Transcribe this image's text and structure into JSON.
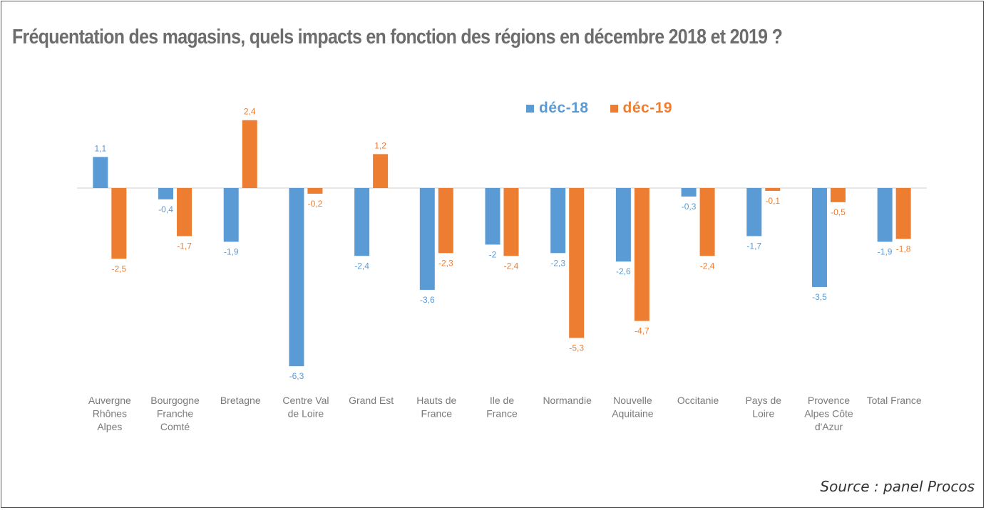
{
  "title": "Fréquentation des magasins, quels impacts en fonction des régions en décembre 2018 et 2019 ?",
  "source": "Source : panel Procos",
  "colors": {
    "dec18": "#5b9bd5",
    "dec19": "#ed7d31",
    "axis": "#d9d9d9",
    "text": "#6d6d6d"
  },
  "legend": [
    {
      "name": "déc-18",
      "color": "#5b9bd5"
    },
    {
      "name": "déc-19",
      "color": "#ed7d31"
    }
  ],
  "chart_data": {
    "type": "bar",
    "title": "",
    "xlabel": "",
    "ylabel": "",
    "ylim": [
      -6.3,
      2.4
    ],
    "grid": false,
    "legend_position": "top-right",
    "categories": [
      [
        "Auvergne",
        "Rhônes",
        "Alpes"
      ],
      [
        "Bourgogne",
        "Franche",
        "Comté"
      ],
      [
        "Bretagne"
      ],
      [
        "Centre Val",
        "de Loire"
      ],
      [
        "Grand Est"
      ],
      [
        "Hauts de",
        "France"
      ],
      [
        "Ile de",
        "France"
      ],
      [
        "Normandie"
      ],
      [
        "Nouvelle",
        "Aquitaine"
      ],
      [
        "Occitanie"
      ],
      [
        "Pays de",
        "Loire"
      ],
      [
        "Provence",
        "Alpes Côte",
        "d'Azur"
      ],
      [
        "Total France"
      ]
    ],
    "series": [
      {
        "name": "déc-18",
        "values": [
          1.1,
          -0.4,
          -1.9,
          -6.3,
          -2.4,
          -3.6,
          -2,
          -2.3,
          -2.6,
          -0.3,
          -1.7,
          -3.5,
          -1.9
        ],
        "labels": [
          "1,1",
          "-0,4",
          "-1,9",
          "-6,3",
          "-2,4",
          "-3,6",
          "-2",
          "-2,3",
          "-2,6",
          "-0,3",
          "-1,7",
          "-3,5",
          "-1,9"
        ]
      },
      {
        "name": "déc-19",
        "values": [
          -2.5,
          -1.7,
          2.4,
          -0.2,
          1.2,
          -2.3,
          -2.4,
          -5.3,
          -4.7,
          -2.4,
          -0.1,
          -0.5,
          -1.8
        ],
        "labels": [
          "-2,5",
          "-1,7",
          "2,4",
          "-0,2",
          "1,2",
          "-2,3",
          "-2,4",
          "-5,3",
          "-4,7",
          "-2,4",
          "-0,1",
          "-0,5",
          "-1,8"
        ]
      }
    ]
  }
}
